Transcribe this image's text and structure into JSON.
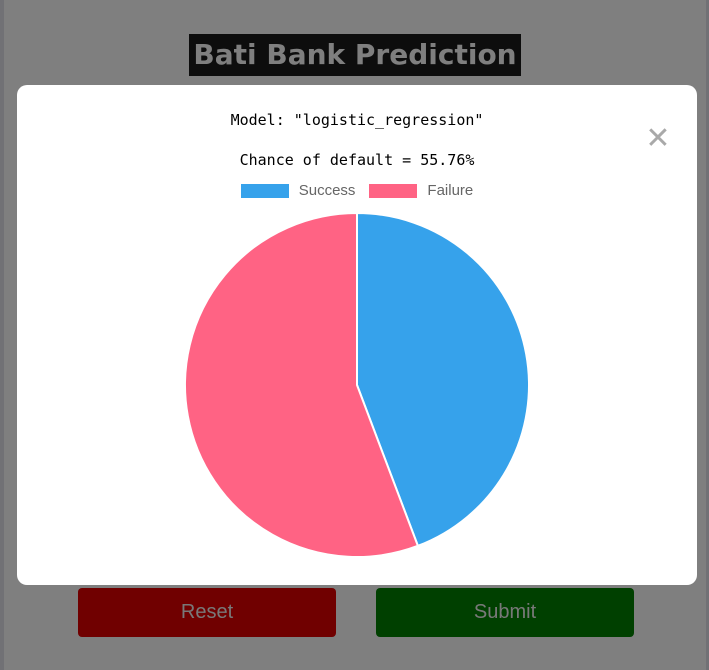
{
  "page": {
    "title": "Bati Bank Prediction"
  },
  "buttons": {
    "reset_label": "Reset",
    "submit_label": "Submit"
  },
  "modal": {
    "close_icon": "close-icon",
    "close_glyph": "✕",
    "model_text": "Model: \"logistic_regression\"",
    "chance_text": "Chance of default = 55.76%"
  },
  "colors": {
    "success": "#36A2EB",
    "failure": "#FF6384",
    "reset_button": "#e00000",
    "submit_button": "#008000"
  },
  "chart_data": {
    "type": "pie",
    "categories": [
      "Success",
      "Failure"
    ],
    "values": [
      44.24,
      55.76
    ],
    "legend": "top",
    "legend_labels": [
      "Success",
      "Failure"
    ]
  }
}
